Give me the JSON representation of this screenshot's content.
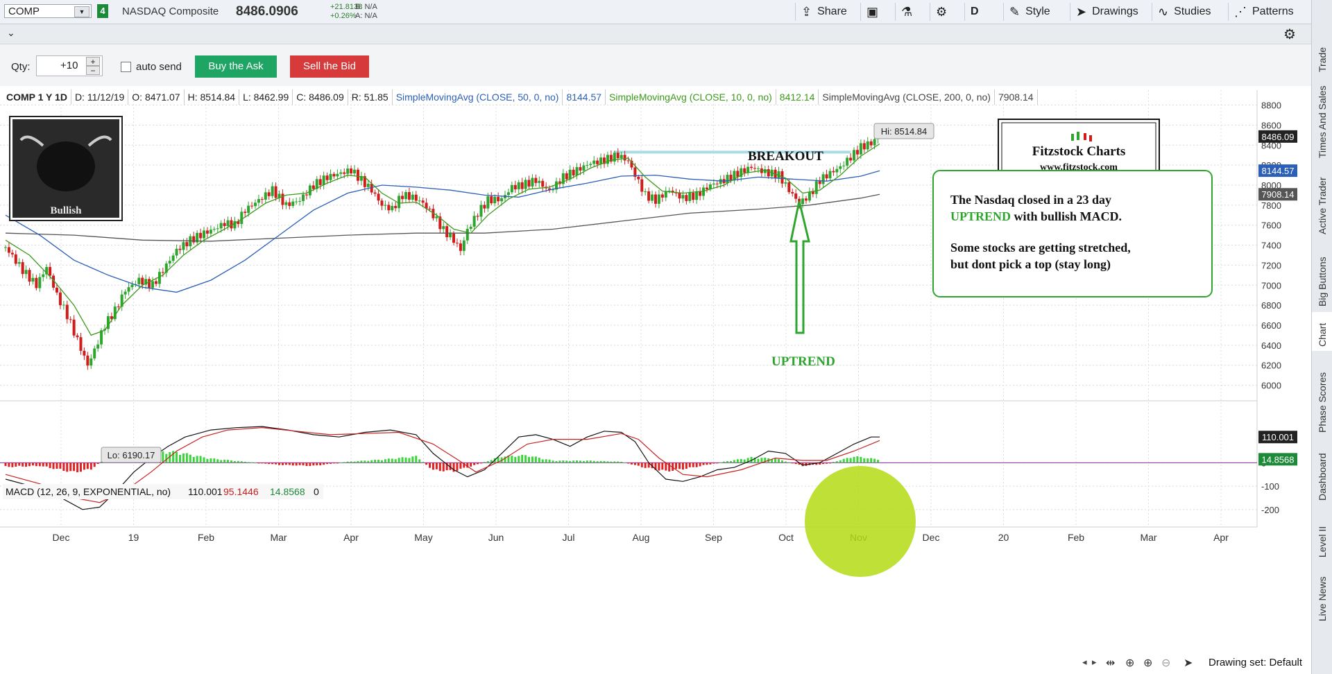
{
  "toolbar": {
    "symbol": "COMP",
    "link_number": "4",
    "symbol_name": "NASDAQ Composite",
    "last": "8486.0906",
    "change_abs": "+21.8138",
    "change_pct": "+0.26%",
    "bid": "B: N/A",
    "ask": "A: N/A",
    "share": "Share",
    "period": "D",
    "style": "Style",
    "drawings": "Drawings",
    "studies": "Studies",
    "patterns": "Patterns"
  },
  "order": {
    "qty_label": "Qty:",
    "qty_value": "+10",
    "auto_send": "auto send",
    "buy": "Buy the Ask",
    "sell": "Sell the Bid"
  },
  "info": {
    "title": "COMP 1 Y 1D",
    "date": "D: 11/12/19",
    "open": "O: 8471.07",
    "high": "H: 8514.84",
    "low": "L: 8462.99",
    "close": "C: 8486.09",
    "range": "R: 51.85",
    "sma50_label": "SimpleMovingAvg (CLOSE, 50, 0, no)",
    "sma50_value": "8144.57",
    "sma10_label": "SimpleMovingAvg (CLOSE, 10, 0, no)",
    "sma10_value": "8412.14",
    "sma200_label": "SimpleMovingAvg (CLOSE, 200, 0, no)",
    "sma200_value": "7908.14"
  },
  "annotations": {
    "bullish": "Bullish",
    "breakout": "BREAKOUT",
    "uptrend": "UPTREND",
    "hi": "Hi: 8514.84",
    "lo": "Lo: 6190.17",
    "logo_title": "Fitzstock Charts",
    "logo_url": "www.fitzstock.com",
    "note_line1": "The Nasdaq closed in a 23 day",
    "note_line2_a": "UPTREND",
    "note_line2_b": " with bullish MACD.",
    "note_line3": "Some stocks are getting stretched,",
    "note_line4": "but dont pick a top (stay long)"
  },
  "macd": {
    "label": "MACD (12, 26, 9, EXPONENTIAL, no)",
    "value": "110.001",
    "avg": "95.1446",
    "diff": "14.8568",
    "zero": "0"
  },
  "footer": {
    "drawing_set": "Drawing set: Default"
  },
  "right_tabs": [
    "Trade",
    "Times And Sales",
    "Active Trader",
    "Big Buttons",
    "Chart",
    "Phase Scores",
    "Dashboard",
    "Level II",
    "Live News"
  ],
  "colors": {
    "up": "#2ea52e",
    "down": "#d11c1c",
    "sma10": "#3a9a1a",
    "sma50": "#2b5fb8",
    "sma200": "#555555",
    "macd_line": "#111111",
    "macd_avg": "#c82020",
    "breakout_line": "#a8dde8",
    "highlight": "#b4dc14"
  },
  "chart_data": {
    "type": "candlestick",
    "price_axis": {
      "ticks": [
        6000,
        6200,
        6400,
        6600,
        6800,
        7000,
        7200,
        7400,
        7600,
        7800,
        8000,
        8200,
        8400,
        8600,
        8800
      ],
      "range": [
        5900,
        8880
      ]
    },
    "price_badges": [
      {
        "value": "8486.09",
        "color": "#222222"
      },
      {
        "value": "8144.57",
        "color": "#2b5fb8"
      },
      {
        "value": "7908.14",
        "color": "#555555"
      }
    ],
    "macd_axis": {
      "ticks": [
        -200,
        -100,
        0
      ],
      "tick_labels": [
        "-200",
        "-100",
        "0"
      ],
      "range": [
        -245,
        170
      ]
    },
    "macd_badges": [
      {
        "value": "110.001",
        "color": "#222222"
      },
      {
        "value": "14.8568",
        "color": "#1d8a3a"
      }
    ],
    "x_labels": [
      "Dec",
      "19",
      "Feb",
      "Mar",
      "Apr",
      "May",
      "Jun",
      "Jul",
      "Aug",
      "Sep",
      "Oct",
      "Nov",
      "Dec",
      "20",
      "Feb",
      "Mar",
      "Apr"
    ],
    "breakout_level": 8330,
    "close_path": [
      [
        0,
        7380
      ],
      [
        10,
        7150
      ],
      [
        18,
        7000
      ],
      [
        24,
        7180
      ],
      [
        30,
        6900
      ],
      [
        36,
        6700
      ],
      [
        42,
        6450
      ],
      [
        48,
        6200
      ],
      [
        52,
        6350
      ],
      [
        58,
        6600
      ],
      [
        64,
        6750
      ],
      [
        70,
        6950
      ],
      [
        78,
        7050
      ],
      [
        86,
        7000
      ],
      [
        92,
        7150
      ],
      [
        100,
        7350
      ],
      [
        108,
        7450
      ],
      [
        116,
        7520
      ],
      [
        122,
        7560
      ],
      [
        128,
        7620
      ],
      [
        134,
        7600
      ],
      [
        140,
        7750
      ],
      [
        148,
        7850
      ],
      [
        156,
        7950
      ],
      [
        164,
        7800
      ],
      [
        172,
        7850
      ],
      [
        180,
        8000
      ],
      [
        188,
        8080
      ],
      [
        196,
        8120
      ],
      [
        202,
        8150
      ],
      [
        208,
        8050
      ],
      [
        214,
        7950
      ],
      [
        220,
        7800
      ],
      [
        226,
        7760
      ],
      [
        232,
        7900
      ],
      [
        238,
        7880
      ],
      [
        244,
        7820
      ],
      [
        250,
        7700
      ],
      [
        256,
        7550
      ],
      [
        262,
        7450
      ],
      [
        266,
        7350
      ],
      [
        270,
        7550
      ],
      [
        276,
        7720
      ],
      [
        282,
        7850
      ],
      [
        290,
        7860
      ],
      [
        296,
        7980
      ],
      [
        302,
        8000
      ],
      [
        310,
        8050
      ],
      [
        318,
        7940
      ],
      [
        326,
        8080
      ],
      [
        334,
        8150
      ],
      [
        342,
        8220
      ],
      [
        350,
        8250
      ],
      [
        358,
        8300
      ],
      [
        364,
        8240
      ],
      [
        368,
        8100
      ],
      [
        374,
        7900
      ],
      [
        380,
        7850
      ],
      [
        388,
        7950
      ],
      [
        396,
        7870
      ],
      [
        404,
        7900
      ],
      [
        412,
        8000
      ],
      [
        420,
        8050
      ],
      [
        428,
        8120
      ],
      [
        436,
        8180
      ],
      [
        444,
        8130
      ],
      [
        452,
        8100
      ],
      [
        458,
        7950
      ],
      [
        464,
        7820
      ],
      [
        470,
        7900
      ],
      [
        476,
        8050
      ],
      [
        482,
        8120
      ],
      [
        488,
        8180
      ],
      [
        494,
        8280
      ],
      [
        500,
        8380
      ],
      [
        506,
        8420
      ],
      [
        511,
        8486
      ]
    ],
    "sma10_path": [
      [
        0,
        7450
      ],
      [
        14,
        7300
      ],
      [
        28,
        7050
      ],
      [
        40,
        6800
      ],
      [
        50,
        6500
      ],
      [
        58,
        6550
      ],
      [
        68,
        6800
      ],
      [
        80,
        7000
      ],
      [
        92,
        7100
      ],
      [
        104,
        7300
      ],
      [
        116,
        7450
      ],
      [
        128,
        7560
      ],
      [
        140,
        7680
      ],
      [
        152,
        7820
      ],
      [
        164,
        7900
      ],
      [
        176,
        7920
      ],
      [
        188,
        8020
      ],
      [
        200,
        8100
      ],
      [
        210,
        8080
      ],
      [
        220,
        7920
      ],
      [
        230,
        7820
      ],
      [
        240,
        7830
      ],
      [
        252,
        7700
      ],
      [
        262,
        7560
      ],
      [
        272,
        7520
      ],
      [
        282,
        7700
      ],
      [
        294,
        7860
      ],
      [
        306,
        7960
      ],
      [
        318,
        7980
      ],
      [
        330,
        8060
      ],
      [
        342,
        8170
      ],
      [
        354,
        8250
      ],
      [
        364,
        8270
      ],
      [
        374,
        8080
      ],
      [
        384,
        7940
      ],
      [
        396,
        7920
      ],
      [
        408,
        7940
      ],
      [
        420,
        8000
      ],
      [
        432,
        8120
      ],
      [
        444,
        8150
      ],
      [
        456,
        8070
      ],
      [
        466,
        7920
      ],
      [
        476,
        7950
      ],
      [
        488,
        8100
      ],
      [
        500,
        8290
      ],
      [
        511,
        8412
      ]
    ],
    "sma50_path": [
      [
        0,
        7700
      ],
      [
        20,
        7500
      ],
      [
        40,
        7250
      ],
      [
        60,
        7100
      ],
      [
        80,
        6980
      ],
      [
        100,
        6930
      ],
      [
        120,
        7050
      ],
      [
        140,
        7250
      ],
      [
        160,
        7500
      ],
      [
        180,
        7750
      ],
      [
        200,
        7920
      ],
      [
        220,
        8000
      ],
      [
        240,
        7980
      ],
      [
        260,
        7950
      ],
      [
        280,
        7900
      ],
      [
        300,
        7880
      ],
      [
        320,
        7960
      ],
      [
        340,
        8020
      ],
      [
        360,
        8090
      ],
      [
        380,
        8100
      ],
      [
        400,
        8060
      ],
      [
        420,
        8040
      ],
      [
        440,
        8080
      ],
      [
        460,
        8060
      ],
      [
        480,
        8040
      ],
      [
        500,
        8090
      ],
      [
        511,
        8144
      ]
    ],
    "sma200_path": [
      [
        0,
        7520
      ],
      [
        40,
        7500
      ],
      [
        80,
        7450
      ],
      [
        120,
        7440
      ],
      [
        160,
        7470
      ],
      [
        200,
        7500
      ],
      [
        240,
        7520
      ],
      [
        280,
        7520
      ],
      [
        320,
        7560
      ],
      [
        360,
        7640
      ],
      [
        400,
        7720
      ],
      [
        440,
        7760
      ],
      [
        470,
        7800
      ],
      [
        500,
        7870
      ],
      [
        511,
        7908
      ]
    ],
    "macd_path": [
      [
        0,
        -70
      ],
      [
        15,
        -100
      ],
      [
        30,
        -140
      ],
      [
        45,
        -200
      ],
      [
        55,
        -190
      ],
      [
        65,
        -120
      ],
      [
        75,
        -40
      ],
      [
        85,
        20
      ],
      [
        95,
        70
      ],
      [
        105,
        110
      ],
      [
        120,
        140
      ],
      [
        135,
        150
      ],
      [
        150,
        155
      ],
      [
        165,
        140
      ],
      [
        180,
        120
      ],
      [
        195,
        110
      ],
      [
        210,
        130
      ],
      [
        225,
        140
      ],
      [
        240,
        120
      ],
      [
        250,
        40
      ],
      [
        262,
        -30
      ],
      [
        270,
        -60
      ],
      [
        280,
        -30
      ],
      [
        290,
        40
      ],
      [
        300,
        110
      ],
      [
        310,
        120
      ],
      [
        320,
        100
      ],
      [
        330,
        70
      ],
      [
        340,
        110
      ],
      [
        350,
        135
      ],
      [
        360,
        130
      ],
      [
        368,
        90
      ],
      [
        376,
        0
      ],
      [
        386,
        -70
      ],
      [
        396,
        -80
      ],
      [
        406,
        -60
      ],
      [
        416,
        -30
      ],
      [
        426,
        -20
      ],
      [
        436,
        10
      ],
      [
        446,
        50
      ],
      [
        456,
        40
      ],
      [
        466,
        -10
      ],
      [
        476,
        0
      ],
      [
        486,
        40
      ],
      [
        496,
        80
      ],
      [
        506,
        110
      ],
      [
        511,
        110
      ]
    ],
    "macd_avg_path": [
      [
        0,
        -50
      ],
      [
        20,
        -90
      ],
      [
        40,
        -150
      ],
      [
        55,
        -170
      ],
      [
        70,
        -120
      ],
      [
        85,
        -40
      ],
      [
        100,
        50
      ],
      [
        115,
        110
      ],
      [
        130,
        140
      ],
      [
        150,
        150
      ],
      [
        170,
        135
      ],
      [
        190,
        120
      ],
      [
        210,
        125
      ],
      [
        230,
        130
      ],
      [
        250,
        80
      ],
      [
        265,
        10
      ],
      [
        275,
        -40
      ],
      [
        290,
        10
      ],
      [
        305,
        80
      ],
      [
        320,
        100
      ],
      [
        340,
        100
      ],
      [
        360,
        125
      ],
      [
        370,
        100
      ],
      [
        382,
        20
      ],
      [
        396,
        -50
      ],
      [
        410,
        -60
      ],
      [
        430,
        -30
      ],
      [
        450,
        20
      ],
      [
        466,
        10
      ],
      [
        480,
        10
      ],
      [
        496,
        50
      ],
      [
        511,
        95
      ]
    ],
    "histogram_points": [
      [
        0,
        -20
      ],
      [
        20,
        -15
      ],
      [
        40,
        -45
      ],
      [
        50,
        -30
      ],
      [
        60,
        30
      ],
      [
        80,
        55
      ],
      [
        100,
        50
      ],
      [
        120,
        20
      ],
      [
        140,
        5
      ],
      [
        160,
        -10
      ],
      [
        180,
        -15
      ],
      [
        200,
        5
      ],
      [
        220,
        15
      ],
      [
        240,
        30
      ],
      [
        250,
        -35
      ],
      [
        262,
        -40
      ],
      [
        275,
        -10
      ],
      [
        290,
        30
      ],
      [
        305,
        35
      ],
      [
        320,
        10
      ],
      [
        340,
        10
      ],
      [
        360,
        5
      ],
      [
        372,
        -20
      ],
      [
        386,
        -40
      ],
      [
        400,
        -25
      ],
      [
        420,
        5
      ],
      [
        436,
        25
      ],
      [
        450,
        20
      ],
      [
        466,
        -15
      ],
      [
        480,
        -5
      ],
      [
        496,
        30
      ],
      [
        511,
        15
      ]
    ]
  }
}
